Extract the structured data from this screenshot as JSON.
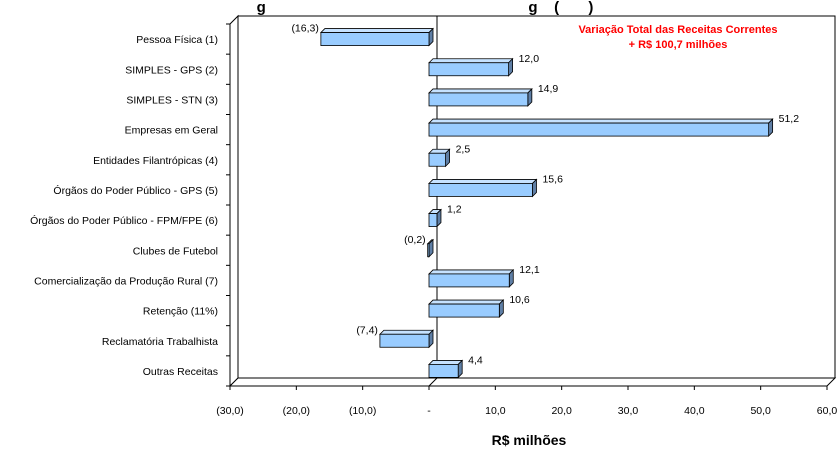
{
  "chart_data": {
    "type": "bar",
    "orientation": "horizontal",
    "title": "g                                                               g    (       )",
    "xlabel": "R$ milhões",
    "categories": [
      "Pessoa Física (1)",
      "SIMPLES - GPS (2)",
      "SIMPLES - STN (3)",
      "Empresas em Geral",
      "Entidades Filantrópicas (4)",
      "Órgãos do Poder Público - GPS (5)",
      "Órgãos do Poder Público - FPM/FPE (6)",
      "Clubes de Futebol",
      "Comercialização da Produção Rural (7)",
      "Retenção (11%)",
      "Reclamatória Trabalhista",
      "Outras Receitas"
    ],
    "values": [
      -16.3,
      12.0,
      14.9,
      51.2,
      2.5,
      15.6,
      1.2,
      -0.2,
      12.1,
      10.6,
      -7.4,
      4.4
    ],
    "data_labels": [
      "(16,3)",
      "12,0",
      "14,9",
      "51,2",
      "2,5",
      "15,6",
      "1,2",
      "(0,2)",
      "12,1",
      "10,6",
      "(7,4)",
      "4,4"
    ],
    "xlim": [
      -30,
      60
    ],
    "xticks": [
      -30,
      -20,
      -10,
      0,
      10,
      20,
      30,
      40,
      50,
      60
    ],
    "xtick_labels": [
      "(30,0)",
      "(20,0)",
      "(10,0)",
      "-",
      "10,0",
      "20,0",
      "30,0",
      "40,0",
      "50,0",
      "60,0"
    ],
    "grid": false,
    "bar_color": "#99ccff",
    "annotation": {
      "lines": [
        "Variação Total das Receitas Correntes",
        "+ R$ 100,7 milhões"
      ],
      "color": "#ff0000"
    }
  }
}
